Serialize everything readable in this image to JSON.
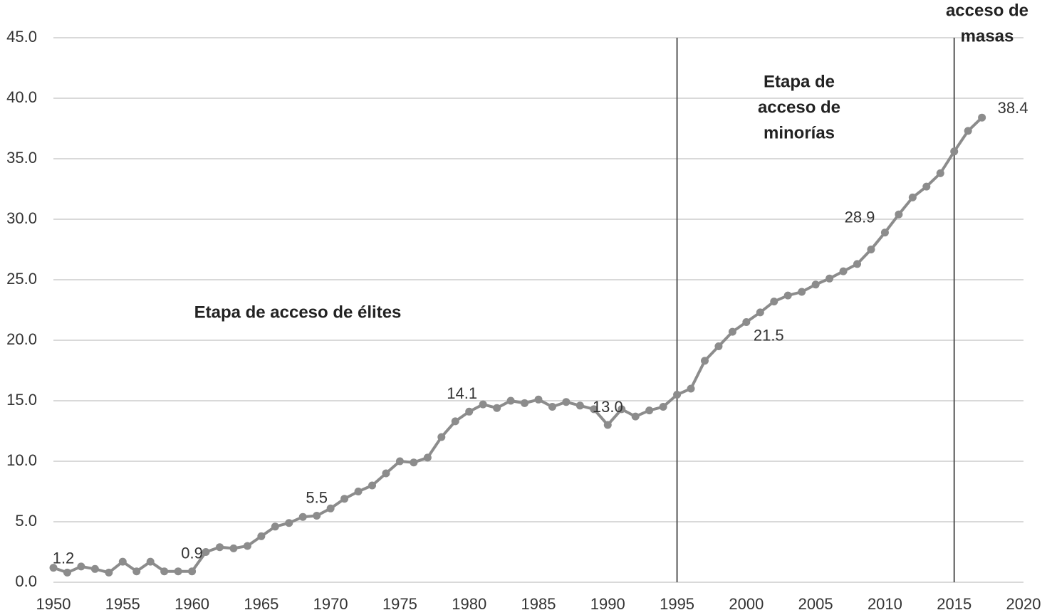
{
  "chart_data": {
    "type": "line",
    "x": [
      1950,
      1951,
      1952,
      1953,
      1954,
      1955,
      1956,
      1957,
      1958,
      1959,
      1960,
      1961,
      1962,
      1963,
      1964,
      1965,
      1966,
      1967,
      1968,
      1969,
      1970,
      1971,
      1972,
      1973,
      1974,
      1975,
      1976,
      1977,
      1978,
      1979,
      1980,
      1981,
      1982,
      1983,
      1984,
      1985,
      1986,
      1987,
      1988,
      1989,
      1990,
      1991,
      1992,
      1993,
      1994,
      1995,
      1996,
      1997,
      1998,
      1999,
      2000,
      2001,
      2002,
      2003,
      2004,
      2005,
      2006,
      2007,
      2008,
      2009,
      2010,
      2011,
      2012,
      2013,
      2014,
      2015,
      2016,
      2017
    ],
    "values": [
      1.2,
      0.8,
      1.3,
      1.1,
      0.8,
      1.7,
      0.9,
      1.7,
      0.9,
      0.9,
      0.9,
      2.5,
      2.9,
      2.8,
      3.0,
      3.8,
      4.6,
      4.9,
      5.4,
      5.5,
      6.1,
      6.9,
      7.5,
      8.0,
      9.0,
      10.0,
      9.9,
      10.3,
      12.0,
      13.3,
      14.1,
      14.7,
      14.4,
      15.0,
      14.8,
      15.1,
      14.5,
      14.9,
      14.6,
      14.3,
      13.0,
      14.3,
      13.7,
      14.2,
      14.5,
      15.5,
      16.0,
      18.3,
      19.5,
      20.7,
      21.5,
      22.3,
      23.2,
      23.7,
      24.0,
      24.6,
      25.1,
      25.7,
      26.3,
      27.5,
      28.9,
      30.4,
      31.8,
      32.7,
      33.8,
      35.6,
      37.3,
      38.4
    ],
    "value_labels": [
      "1.2",
      null,
      null,
      null,
      null,
      null,
      null,
      null,
      null,
      null,
      "0.9",
      null,
      null,
      null,
      null,
      null,
      null,
      null,
      null,
      "5.5",
      null,
      null,
      null,
      null,
      null,
      null,
      null,
      null,
      null,
      null,
      "14.1",
      null,
      null,
      null,
      null,
      null,
      null,
      null,
      null,
      null,
      "13.0",
      null,
      null,
      null,
      null,
      null,
      null,
      null,
      null,
      null,
      "21.5",
      null,
      null,
      null,
      null,
      null,
      null,
      null,
      null,
      null,
      "28.9",
      null,
      null,
      null,
      null,
      null,
      null,
      "38.4"
    ],
    "color": "#8c8c8c",
    "xlim": [
      1950,
      2020
    ],
    "xticks": [
      1950,
      1955,
      1960,
      1965,
      1970,
      1975,
      1980,
      1985,
      1990,
      1995,
      2000,
      2005,
      2010,
      2015,
      2020
    ],
    "ylim": [
      0,
      45
    ],
    "yticks": [
      {
        "value": 0,
        "label": "0.0"
      },
      {
        "value": 5,
        "label": "5.0"
      },
      {
        "value": 10,
        "label": "10.0"
      },
      {
        "value": 15,
        "label": "15.0"
      },
      {
        "value": 20,
        "label": "20.0"
      },
      {
        "value": 25,
        "label": "25.0"
      },
      {
        "value": 30,
        "label": "30.0"
      },
      {
        "value": 35,
        "label": "35.0"
      },
      {
        "value": 40,
        "label": "40.0"
      },
      {
        "value": 45,
        "label": "45.0"
      }
    ],
    "grid": true,
    "vlines": [
      1995,
      2015
    ],
    "annotations": [
      [
        "Etapa de acceso de élites"
      ],
      [
        "Etapa de",
        "acceso de",
        "minorías"
      ],
      [
        "acceso de",
        "masas"
      ]
    ]
  }
}
